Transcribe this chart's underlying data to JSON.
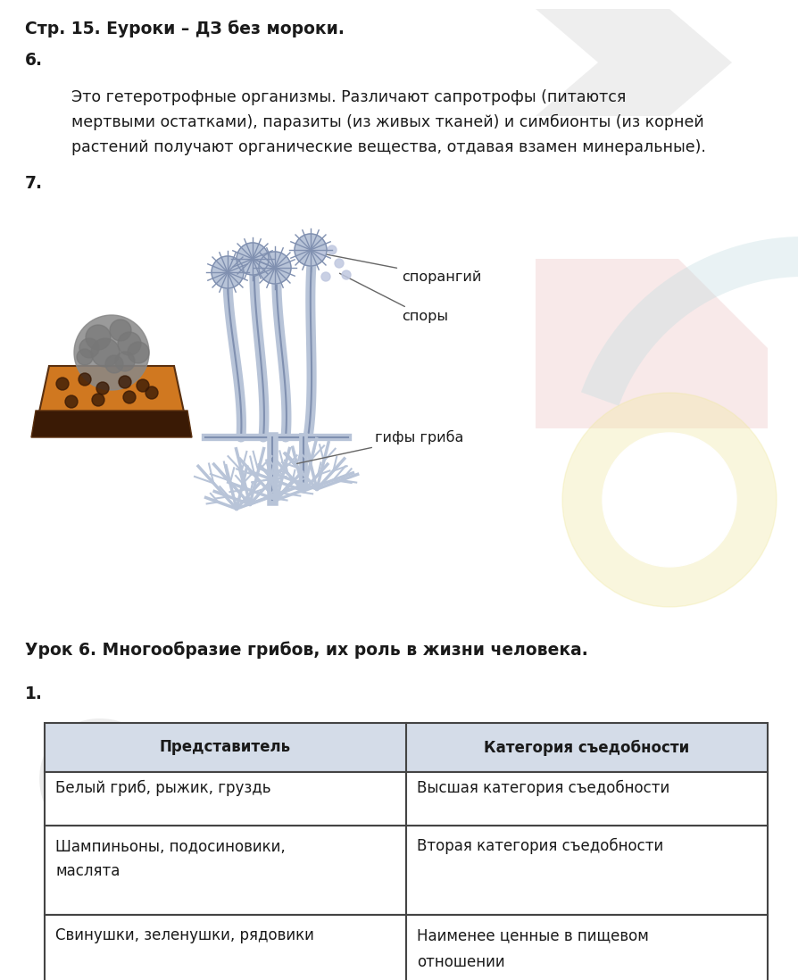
{
  "bg_color": "#ffffff",
  "text_color": "#1a1a1a",
  "fig_w": 8.94,
  "fig_h": 10.98,
  "dpi": 100,
  "title_text": "Стр. 15. Еуроки – ДЗ без мороки.",
  "label6": "6.",
  "body6_line1": "Это гетеротрофные организмы. Различают сапротрофы (питаются",
  "body6_line2": "мертвыми остатками), паразиты (из живых тканей) и симбионты (из корней",
  "body6_line3": "растений получают органические вещества, отдавая взамен минеральные).",
  "label7": "7.",
  "lbl_sporangiy": "спорангий",
  "lbl_spory": "споры",
  "lbl_giphy": "гифы гриба",
  "lesson6_title": "Урок 6. Многообразие грибов, их роль в жизни человека.",
  "label1": "1.",
  "table_hdr1": "Представитель",
  "table_hdr2": "Категория съедобности",
  "r1c1": "Белый гриб, рыжик, груздь",
  "r1c2": "Высшая категория съедобности",
  "r2c1a": "Шампиньоны, подосиновики,",
  "r2c1b": "маслята",
  "r2c2": "Вторая категория съедобности",
  "r3c1": "Свинушки, зеленушки, рядовики",
  "r3c2a": "Наименее ценные в пищевом",
  "r3c2b": "отношении",
  "table_hdr_bg": "#d4dce8",
  "table_border": "#444444",
  "stalk_color": "#b8c4d8",
  "stalk_dark": "#8090b0"
}
